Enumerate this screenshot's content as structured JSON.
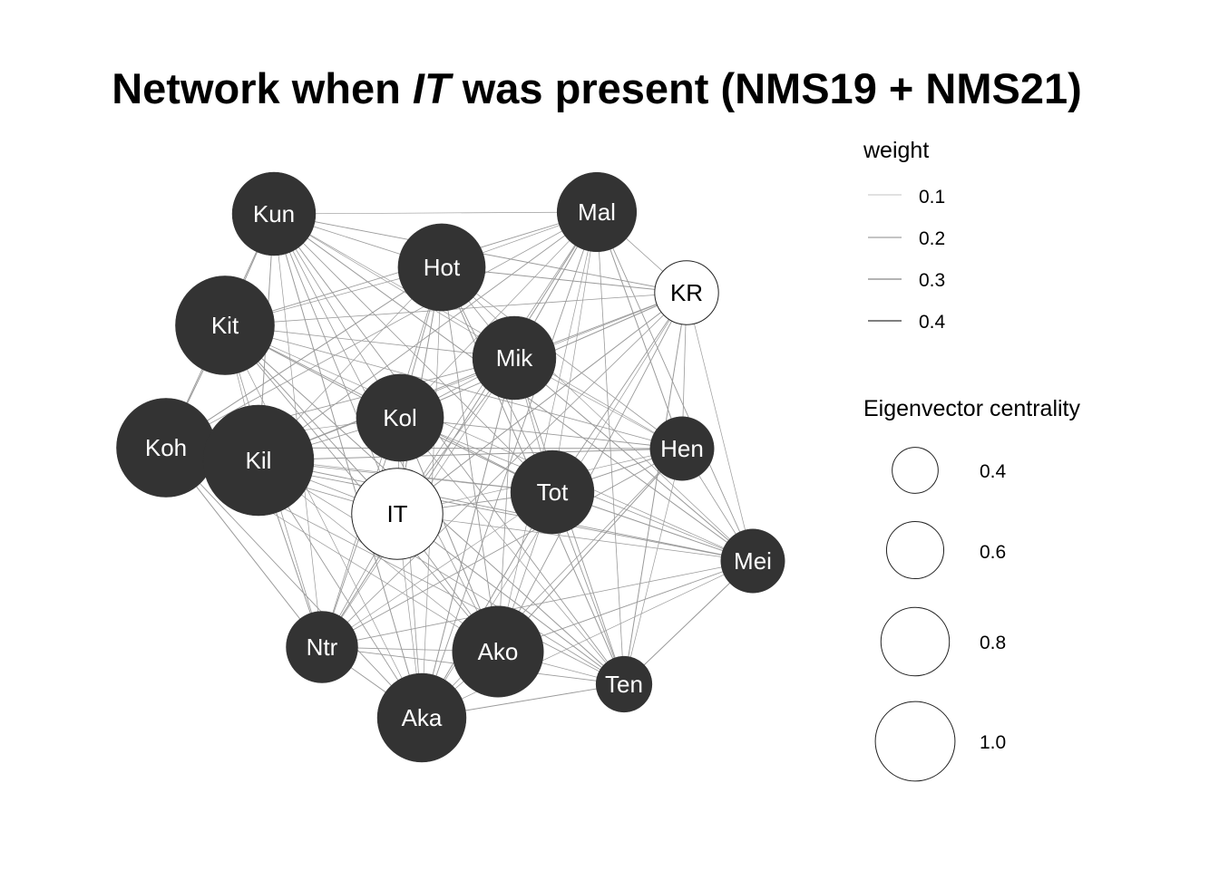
{
  "title": {
    "prefix": "Network when ",
    "italic": "IT",
    "suffix": " was present (NMS19 + NMS21)"
  },
  "colors": {
    "node_fill": "#333333",
    "highlight_fill": "#ffffff",
    "edge": "#9a9a9a",
    "label_dark": "#ffffff",
    "label_light": "#000000"
  },
  "legend": {
    "weight": {
      "title": "weight",
      "items": [
        "0.1",
        "0.2",
        "0.3",
        "0.4"
      ]
    },
    "centrality": {
      "title": "Eigenvector centrality",
      "items": [
        "0.4",
        "0.6",
        "0.8",
        "1.0"
      ]
    }
  },
  "nodes": [
    {
      "id": "Kun",
      "centrality": 0.65,
      "highlight": false
    },
    {
      "id": "Mal",
      "centrality": 0.6,
      "highlight": false
    },
    {
      "id": "Hot",
      "centrality": 0.7,
      "highlight": false
    },
    {
      "id": "KR",
      "centrality": 0.4,
      "highlight": true
    },
    {
      "id": "Kit",
      "centrality": 0.85,
      "highlight": false
    },
    {
      "id": "Mik",
      "centrality": 0.65,
      "highlight": false
    },
    {
      "id": "Kol",
      "centrality": 0.7,
      "highlight": false
    },
    {
      "id": "Koh",
      "centrality": 0.85,
      "highlight": false
    },
    {
      "id": "Kil",
      "centrality": 1.0,
      "highlight": false
    },
    {
      "id": "Hen",
      "centrality": 0.4,
      "highlight": false
    },
    {
      "id": "Tot",
      "centrality": 0.65,
      "highlight": false
    },
    {
      "id": "IT",
      "centrality": 0.75,
      "highlight": true
    },
    {
      "id": "Mei",
      "centrality": 0.4,
      "highlight": false
    },
    {
      "id": "Ntr",
      "centrality": 0.5,
      "highlight": false
    },
    {
      "id": "Ako",
      "centrality": 0.75,
      "highlight": false
    },
    {
      "id": "Ten",
      "centrality": 0.3,
      "highlight": false
    },
    {
      "id": "Aka",
      "centrality": 0.72,
      "highlight": false
    }
  ]
}
